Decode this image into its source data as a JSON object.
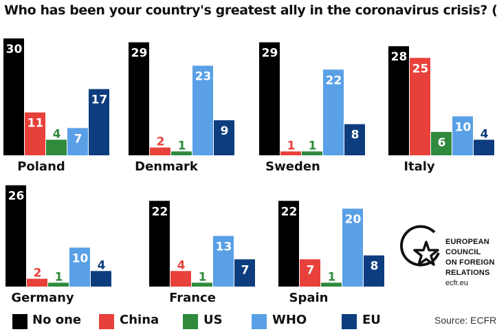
{
  "title": "Who has been your country's greatest ally in the coronavirus crisis? (%)",
  "colors": {
    "No one": "#000000",
    "China": "#e8403a",
    "US": "#2f8a3c",
    "WHO": "#5aa0e6",
    "EU": "#0d3d7e"
  },
  "legend": [
    "No one",
    "China",
    "US",
    "WHO",
    "EU"
  ],
  "source": "Source: ECFR",
  "logo": {
    "lines": [
      "EUROPEAN",
      "COUNCIL",
      "ON FOREIGN",
      "RELATIONS"
    ],
    "url": "ecfr.eu",
    "icon": "star-circle-icon"
  },
  "chart_data": [
    {
      "type": "bar",
      "title": "Poland",
      "categories": [
        "No one",
        "China",
        "US",
        "WHO",
        "EU"
      ],
      "values": [
        30,
        11,
        4,
        7,
        17
      ]
    },
    {
      "type": "bar",
      "title": "Denmark",
      "categories": [
        "No one",
        "China",
        "US",
        "WHO",
        "EU"
      ],
      "values": [
        29,
        2,
        1,
        23,
        9
      ]
    },
    {
      "type": "bar",
      "title": "Sweden",
      "categories": [
        "No one",
        "China",
        "US",
        "WHO",
        "EU"
      ],
      "values": [
        29,
        1,
        1,
        22,
        8
      ]
    },
    {
      "type": "bar",
      "title": "Italy",
      "categories": [
        "No one",
        "China",
        "US",
        "WHO",
        "EU"
      ],
      "values": [
        28,
        25,
        6,
        10,
        4
      ]
    },
    {
      "type": "bar",
      "title": "Germany",
      "categories": [
        "No one",
        "China",
        "US",
        "WHO",
        "EU"
      ],
      "values": [
        26,
        2,
        1,
        10,
        4
      ]
    },
    {
      "type": "bar",
      "title": "France",
      "categories": [
        "No one",
        "China",
        "US",
        "WHO",
        "EU"
      ],
      "values": [
        22,
        4,
        1,
        13,
        7
      ]
    },
    {
      "type": "bar",
      "title": "Spain",
      "categories": [
        "No one",
        "China",
        "US",
        "WHO",
        "EU"
      ],
      "values": [
        22,
        7,
        1,
        20,
        8
      ]
    }
  ]
}
